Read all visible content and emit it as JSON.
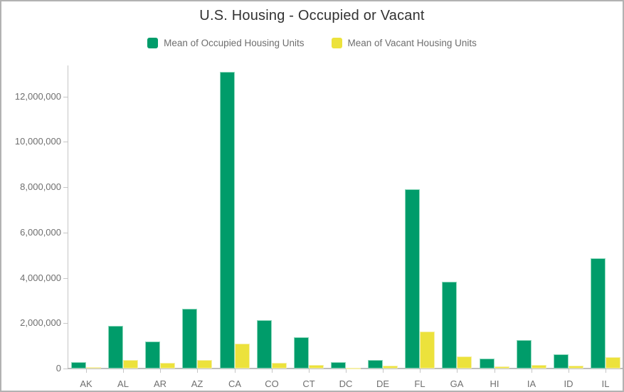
{
  "title": "U.S. Housing - Occupied or Vacant",
  "legend": [
    {
      "label": "Mean of Occupied Housing Units",
      "color": "#009c6a"
    },
    {
      "label": "Mean of Vacant Housing Units",
      "color": "#ece23c"
    }
  ],
  "colors": {
    "occupied_fill": "#009c6a",
    "occupied_edge": "#8fd9bd",
    "vacant_fill": "#ece23c",
    "vacant_edge": "#f5efa8",
    "axis_line": "#c6c6c6",
    "axis_text": "#6f6f6f",
    "title_text": "#323232",
    "canvas_border": "#b2b2b2"
  },
  "chart_data": {
    "type": "bar",
    "title": "U.S. Housing - Occupied or Vacant",
    "xlabel": "",
    "ylabel": "",
    "grid": false,
    "legend_position": "top",
    "categories": [
      "AK",
      "AL",
      "AR",
      "AZ",
      "CA",
      "CO",
      "CT",
      "DC",
      "DE",
      "FL",
      "GA",
      "HI",
      "IA",
      "ID",
      "IL"
    ],
    "series": [
      {
        "name": "Mean of Occupied Housing Units",
        "color": "#009c6a",
        "edge_color": "#8fd9bd",
        "values": [
          270000,
          1890000,
          1180000,
          2640000,
          13080000,
          2140000,
          1390000,
          290000,
          370000,
          7920000,
          3830000,
          450000,
          1270000,
          640000,
          4860000
        ]
      },
      {
        "name": "Mean of Vacant Housing Units",
        "color": "#ece23c",
        "edge_color": "#f5efa8",
        "values": [
          60000,
          390000,
          240000,
          390000,
          1100000,
          240000,
          160000,
          40000,
          120000,
          1630000,
          520000,
          80000,
          160000,
          110000,
          490000
        ]
      }
    ],
    "ylim": [
      0,
      13400000
    ],
    "yticks": [
      0,
      2000000,
      4000000,
      6000000,
      8000000,
      10000000,
      12000000
    ],
    "ytick_labels": [
      "0",
      "2,000,000",
      "4,000,000",
      "6,000,000",
      "8,000,000",
      "10,000,000",
      "12,000,000"
    ]
  }
}
